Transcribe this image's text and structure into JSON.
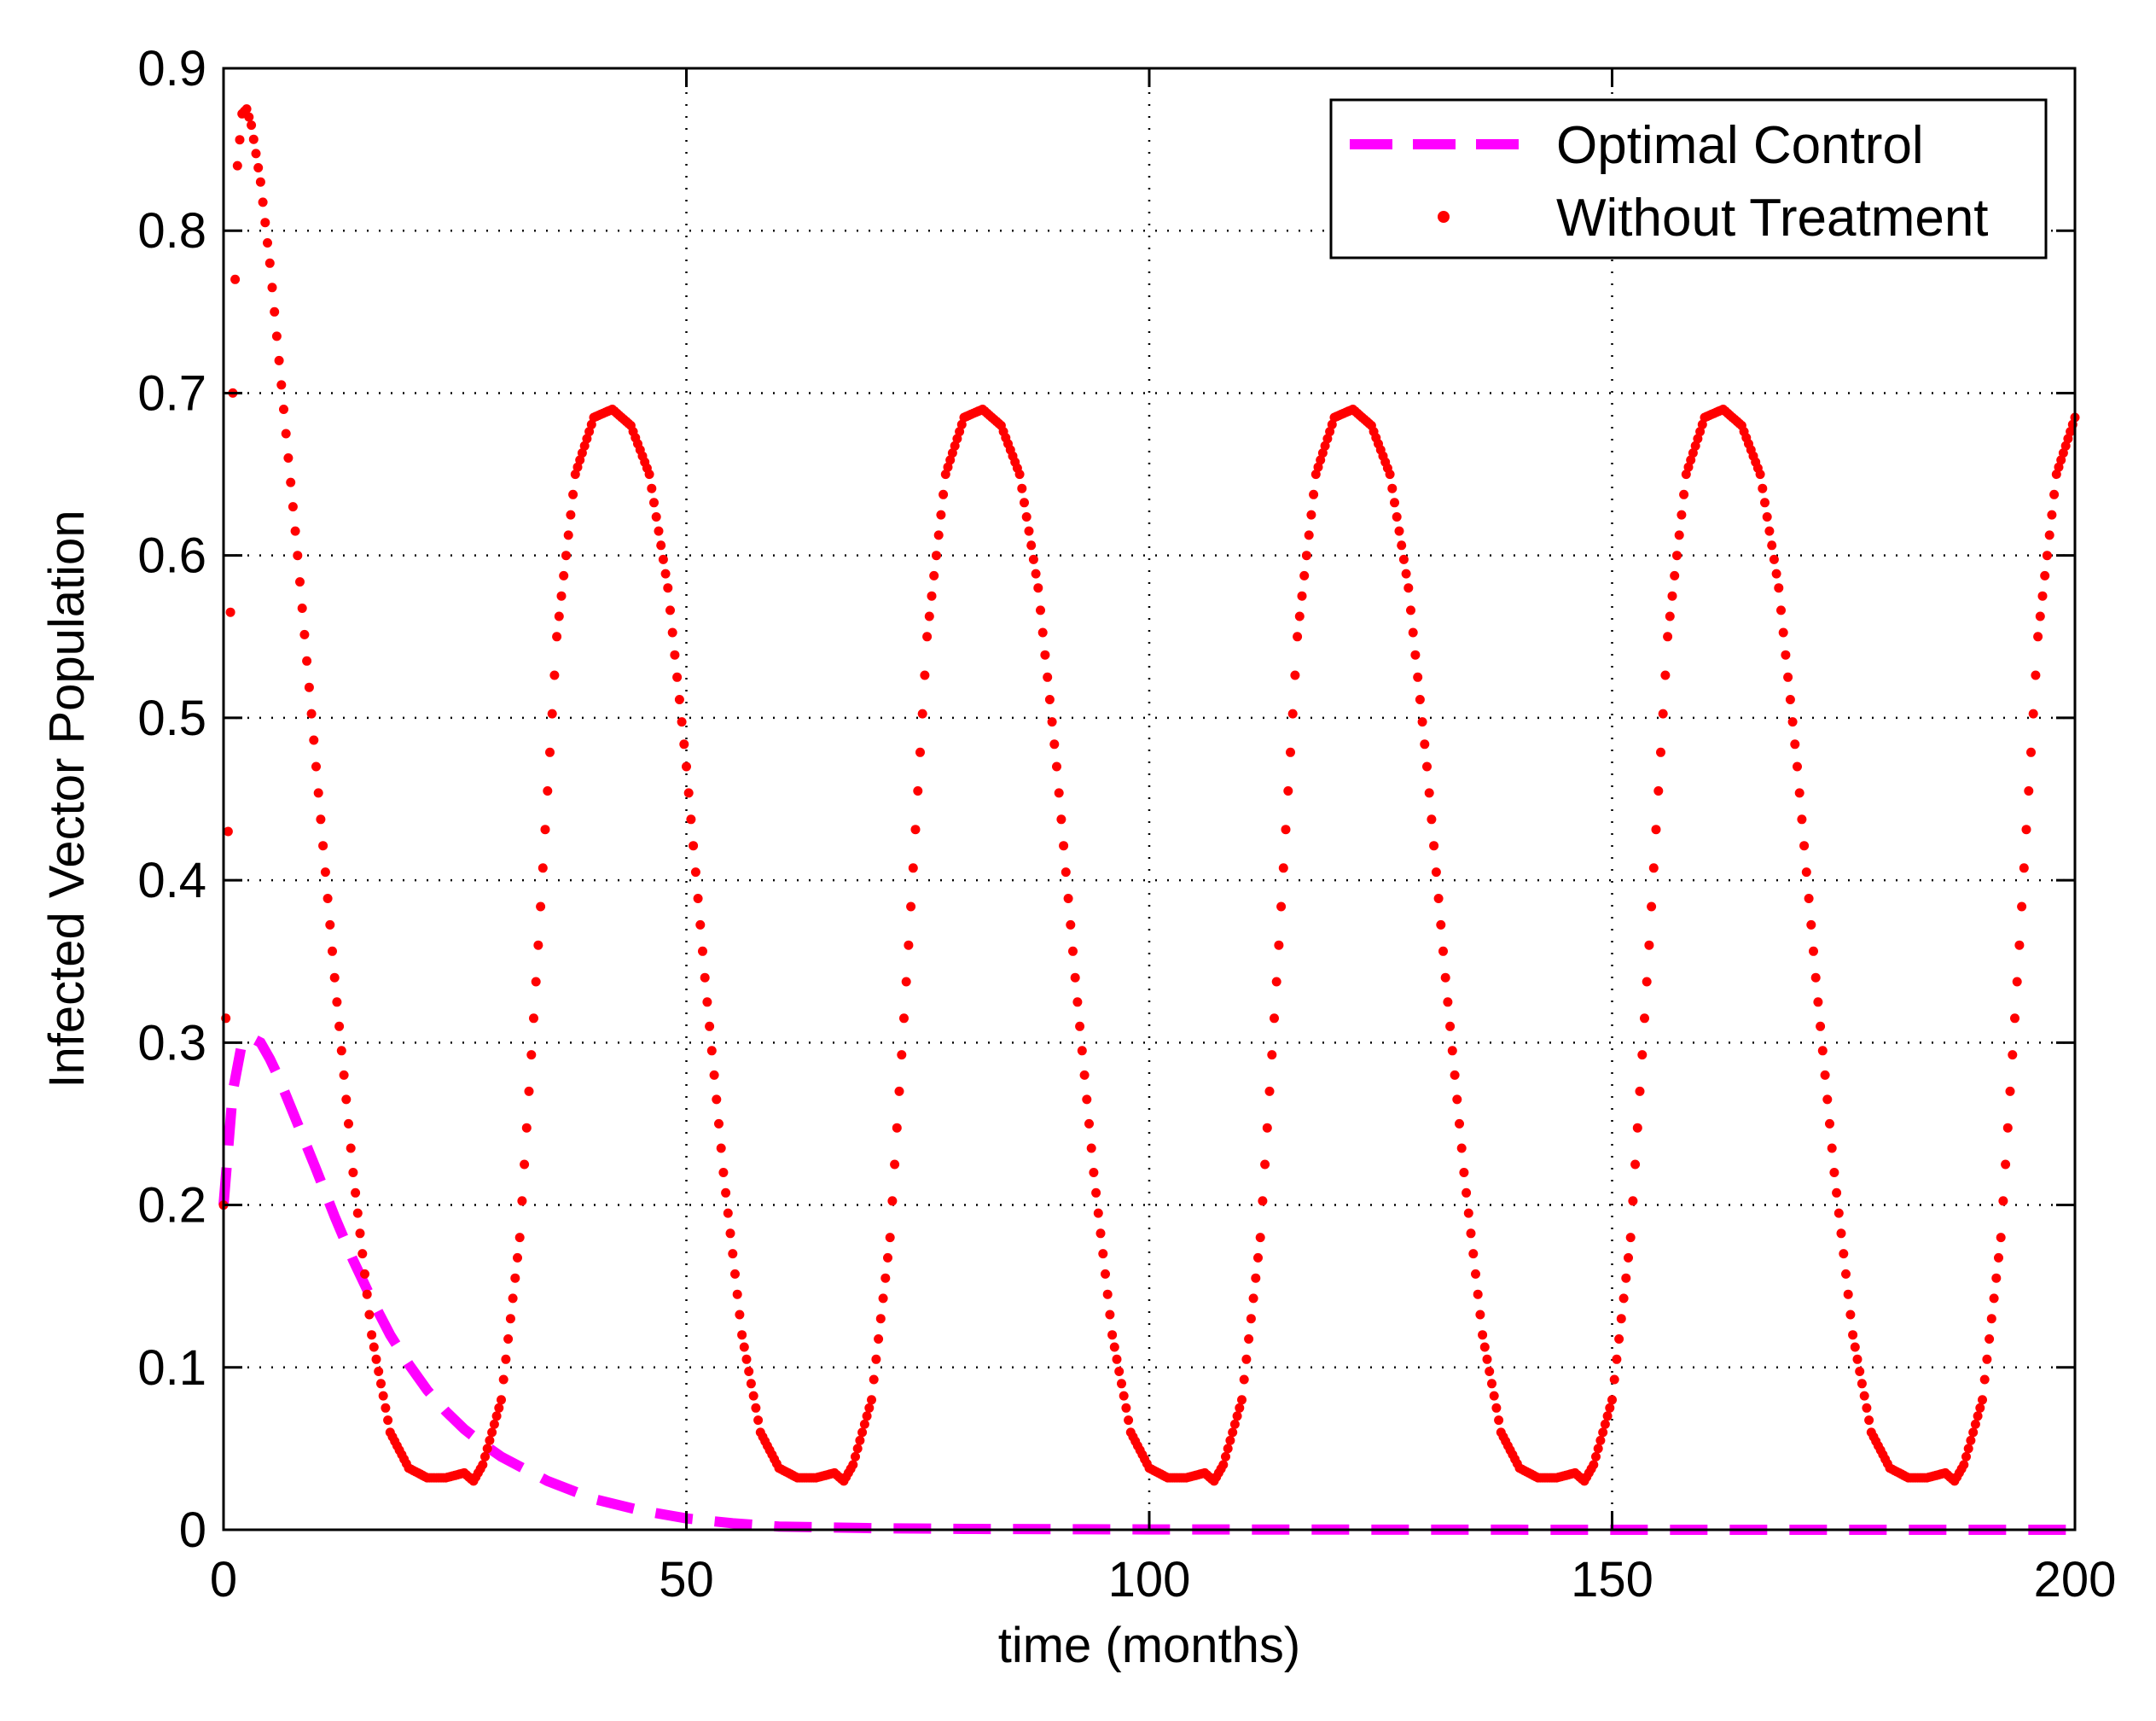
{
  "chart_data": {
    "type": "line",
    "title": "",
    "xlabel": "time (months)",
    "ylabel": "Infected Vector Population",
    "xlim": [
      0,
      200
    ],
    "ylim": [
      0,
      0.9
    ],
    "xticks": [
      0,
      50,
      100,
      150,
      200
    ],
    "xtick_labels": [
      "0",
      "50",
      "100",
      "150",
      "200"
    ],
    "yticks": [
      0,
      0.1,
      0.2,
      0.3,
      0.4,
      0.5,
      0.6,
      0.7,
      0.8,
      0.9
    ],
    "ytick_labels": [
      "0",
      "0.1",
      "0.2",
      "0.3",
      "0.4",
      "0.5",
      "0.6",
      "0.7",
      "0.8",
      "0.9"
    ],
    "grid": true,
    "legend_position": "top-right",
    "series": [
      {
        "name": "Optimal Control",
        "style": "dashed",
        "color": "#ff00ff",
        "x": [
          0,
          1,
          2,
          3,
          4,
          5,
          6,
          8,
          10,
          12,
          14,
          16,
          18,
          20,
          22,
          24,
          26,
          28,
          30,
          35,
          40,
          45,
          50,
          55,
          60,
          70,
          80,
          100,
          120,
          150,
          200
        ],
        "y": [
          0.2,
          0.27,
          0.3,
          0.303,
          0.3,
          0.29,
          0.278,
          0.25,
          0.222,
          0.193,
          0.166,
          0.142,
          0.12,
          0.102,
          0.086,
          0.073,
          0.062,
          0.053,
          0.045,
          0.03,
          0.019,
          0.012,
          0.007,
          0.004,
          0.002,
          0.001,
          0.0005,
          0.0002,
          0.0001,
          0.0,
          0.0
        ]
      },
      {
        "name": "Without Treatment",
        "style": "dotted",
        "color": "#ff0000",
        "x": [
          0,
          0.5,
          1,
          1.5,
          2,
          2.5,
          3,
          4,
          5,
          6,
          8,
          10,
          12,
          14,
          16,
          18,
          20,
          22,
          24,
          26,
          27,
          28,
          30,
          32,
          34,
          36,
          38,
          40,
          42,
          44,
          46,
          48,
          50,
          52,
          54,
          56,
          58,
          60,
          62,
          64,
          66,
          67,
          68,
          70,
          72,
          74,
          76,
          78,
          80,
          82,
          84,
          86,
          88,
          90,
          92,
          94,
          96,
          98,
          100,
          102,
          104,
          106,
          107,
          108,
          110,
          112,
          114,
          116,
          118,
          120,
          122,
          124,
          126,
          128,
          130,
          132,
          134,
          136,
          138,
          140,
          142,
          144,
          146,
          147,
          148,
          150,
          152,
          154,
          156,
          158,
          160,
          162,
          164,
          166,
          168,
          170,
          172,
          174,
          176,
          178,
          180,
          182,
          184,
          186,
          187,
          188,
          190,
          192,
          194,
          196,
          198,
          200
        ],
        "y": [
          0.2,
          0.43,
          0.7,
          0.84,
          0.872,
          0.875,
          0.865,
          0.83,
          0.78,
          0.72,
          0.6,
          0.47,
          0.34,
          0.22,
          0.12,
          0.06,
          0.038,
          0.032,
          0.032,
          0.035,
          0.03,
          0.04,
          0.08,
          0.18,
          0.36,
          0.55,
          0.65,
          0.685,
          0.69,
          0.68,
          0.65,
          0.58,
          0.47,
          0.34,
          0.22,
          0.12,
          0.06,
          0.038,
          0.032,
          0.032,
          0.035,
          0.03,
          0.04,
          0.08,
          0.18,
          0.36,
          0.55,
          0.65,
          0.685,
          0.69,
          0.68,
          0.65,
          0.58,
          0.47,
          0.34,
          0.22,
          0.12,
          0.06,
          0.038,
          0.032,
          0.032,
          0.035,
          0.03,
          0.04,
          0.08,
          0.18,
          0.36,
          0.55,
          0.65,
          0.685,
          0.69,
          0.68,
          0.65,
          0.58,
          0.47,
          0.34,
          0.22,
          0.12,
          0.06,
          0.038,
          0.032,
          0.032,
          0.035,
          0.03,
          0.04,
          0.08,
          0.18,
          0.36,
          0.55,
          0.65,
          0.685,
          0.69,
          0.68,
          0.65,
          0.58,
          0.47,
          0.34,
          0.22,
          0.12,
          0.06,
          0.038,
          0.032,
          0.032,
          0.035,
          0.03,
          0.04,
          0.08,
          0.18,
          0.36,
          0.55,
          0.65,
          0.685
        ]
      }
    ]
  }
}
